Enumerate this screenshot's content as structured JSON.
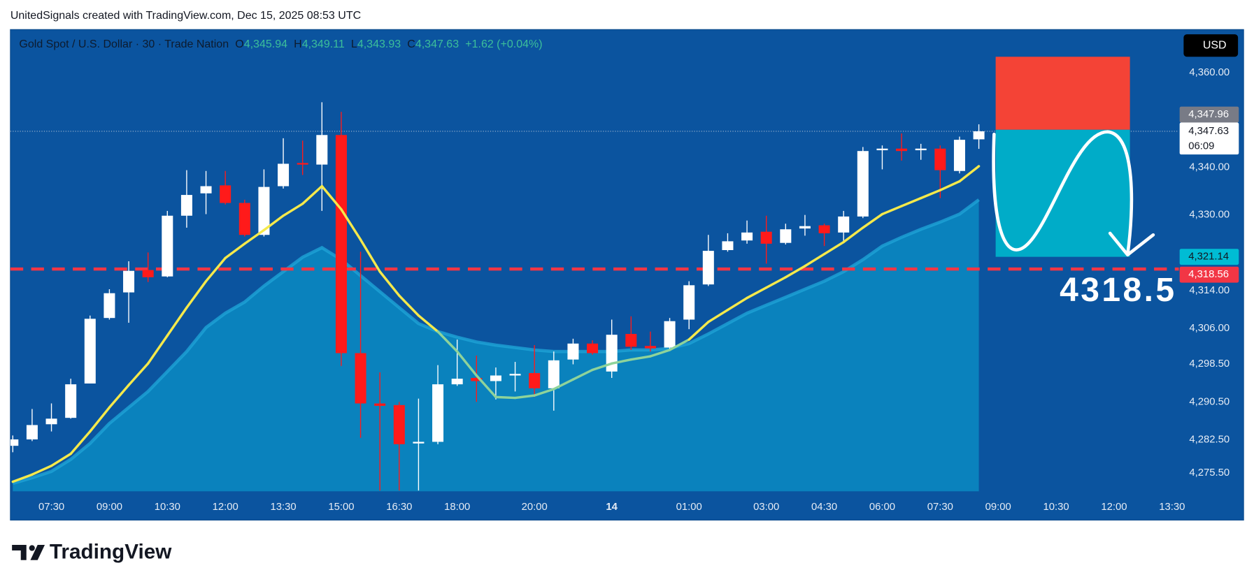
{
  "header": {
    "text": "UnitedSignals created with TradingView.com, Dec 15, 2025 08:53 UTC"
  },
  "chart_data": {
    "type": "candlestick",
    "symbol": "Gold Spot / U.S. Dollar · 30 · Trade Nation",
    "ohlc_legend": [
      {
        "key": "O",
        "text": "4,345.94"
      },
      {
        "key": "H",
        "text": "4,349.11"
      },
      {
        "key": "L",
        "text": "4,343.93"
      },
      {
        "key": "C",
        "text": "4,347.63"
      }
    ],
    "change": "+1.62 (+0.04%)",
    "currency": "USD",
    "open": [
      4281.25,
      4282.6,
      4285.8,
      4287.15,
      4294.4,
      4308.23,
      4313.63,
      4318.35,
      4317.0,
      4329.82,
      4334.54,
      4336.22,
      4332.51,
      4325.77,
      4336.05,
      4340.94,
      4340.61,
      4346.85,
      4300.81,
      4290.19,
      4289.85,
      4281.75,
      4282.09,
      4294.23,
      4295.58,
      4294.91,
      4296.09,
      4296.6,
      4293.39,
      4299.46,
      4302.83,
      4296.93,
      4304.86,
      4302.33,
      4301.99,
      4307.89,
      4315.31,
      4322.56,
      4324.59,
      4326.44,
      4324.08,
      4327.12,
      4327.79,
      4326.27,
      4329.65,
      4343.64,
      4343.98,
      4343.64,
      4343.98,
      4339.26,
      4345.94
    ],
    "high": [
      4283.44,
      4289.01,
      4290.19,
      4295.41,
      4308.74,
      4314.3,
      4320.2,
      4322.06,
      4330.83,
      4339.43,
      4339.26,
      4339.26,
      4333.19,
      4339.6,
      4346.17,
      4345.67,
      4353.76,
      4351.74,
      4322.23,
      4296.76,
      4290.52,
      4291.2,
      4298.28,
      4303.68,
      4300.3,
      4297.78,
      4298.96,
      4302.5,
      4301.15,
      4303.85,
      4303.51,
      4307.89,
      4308.57,
      4305.36,
      4308.23,
      4315.99,
      4325.77,
      4326.11,
      4328.8,
      4329.82,
      4328.13,
      4329.98,
      4328.13,
      4330.83,
      4344.32,
      4344.65,
      4347.18,
      4344.99,
      4344.65,
      4346.51,
      4349.11
    ],
    "low": [
      4279.9,
      4282.26,
      4284.28,
      4286.98,
      4294.4,
      4307.89,
      4307.22,
      4315.82,
      4316.83,
      4327.29,
      4330.15,
      4332.18,
      4325.43,
      4325.43,
      4335.55,
      4338.42,
      4330.83,
      4298.11,
      4282.93,
      4271.81,
      4271.81,
      4271.81,
      4281.59,
      4293.9,
      4290.52,
      4291.03,
      4292.72,
      4291.54,
      4288.67,
      4298.45,
      4300.47,
      4295.58,
      4301.48,
      4301.15,
      4301.65,
      4305.87,
      4314.98,
      4322.23,
      4323.91,
      4319.7,
      4323.74,
      4325.6,
      4323.41,
      4324.42,
      4329.31,
      4339.6,
      4341.45,
      4341.62,
      4333.53,
      4338.75,
      4343.93
    ],
    "close": [
      4282.6,
      4285.63,
      4286.98,
      4294.23,
      4308.06,
      4313.46,
      4318.18,
      4316.83,
      4329.82,
      4334.2,
      4336.05,
      4332.51,
      4325.77,
      4335.89,
      4340.78,
      4340.61,
      4346.85,
      4300.81,
      4290.19,
      4289.68,
      4281.59,
      4282.09,
      4294.23,
      4295.41,
      4294.91,
      4296.09,
      4296.43,
      4293.39,
      4299.29,
      4302.83,
      4300.81,
      4304.69,
      4302.16,
      4301.82,
      4307.56,
      4315.14,
      4322.4,
      4324.42,
      4326.27,
      4323.91,
      4326.95,
      4327.62,
      4326.11,
      4329.65,
      4343.47,
      4343.98,
      4343.47,
      4343.98,
      4339.43,
      4345.84,
      4347.63
    ],
    "up_color": "#ffffff",
    "down_color": "#ff1a1a",
    "series": [
      {
        "color": "#f5e94b",
        "color_below": "#8ed39a",
        "values": [
          4273.66,
          4275.18,
          4277.03,
          4279.56,
          4284.28,
          4289.34,
          4294.07,
          4298.62,
          4304.52,
          4310.42,
          4315.99,
          4320.88,
          4323.91,
          4326.78,
          4329.82,
          4332.34,
          4336.05,
          4331.16,
          4324.76,
          4318.01,
          4312.95,
          4308.74,
          4305.36,
          4301.15,
          4296.09,
          4291.54,
          4291.37,
          4291.87,
          4293.22,
          4295.25,
          4297.27,
          4298.62,
          4299.46,
          4300.14,
          4301.48,
          4303.68,
          4307.39,
          4309.92,
          4312.45,
          4314.64,
          4316.83,
          4319.19,
          4321.72,
          4324.25,
          4327.29,
          4330.15,
          4331.84,
          4333.53,
          4335.21,
          4337.07,
          4340.27
        ]
      },
      {
        "color": "#1ea2d6",
        "fill": "#0a87c0",
        "values": [
          4273.32,
          4274.5,
          4275.85,
          4278.38,
          4281.75,
          4285.97,
          4289.34,
          4292.72,
          4296.93,
          4301.15,
          4306.21,
          4309.24,
          4311.6,
          4314.98,
          4318.01,
          4321.05,
          4323.07,
          4320.54,
          4317.17,
          4313.79,
          4310.42,
          4307.05,
          4305.36,
          4304.18,
          4303.17,
          4302.5,
          4301.99,
          4301.48,
          4301.15,
          4301.15,
          4301.15,
          4301.15,
          4301.48,
          4301.48,
          4301.82,
          4302.83,
          4304.86,
          4307.05,
          4309.24,
          4310.93,
          4312.61,
          4314.3,
          4315.99,
          4318.01,
          4320.54,
          4323.41,
          4325.26,
          4326.95,
          4328.47,
          4330.15,
          4333.19
        ]
      }
    ],
    "ylim": [
      4271.64,
      4369.11
    ],
    "yticks": [
      {
        "value": 4360,
        "label": "4,360.00"
      },
      {
        "value": 4340,
        "label": "4,340.00"
      },
      {
        "value": 4330,
        "label": "4,330.00"
      },
      {
        "value": 4314,
        "label": "4,314.00"
      },
      {
        "value": 4306,
        "label": "4,306.00"
      },
      {
        "value": 4298.5,
        "label": "4,298.50"
      },
      {
        "value": 4290.5,
        "label": "4,290.50"
      },
      {
        "value": 4282.5,
        "label": "4,282.50"
      },
      {
        "value": 4275.5,
        "label": "4,275.50"
      }
    ],
    "xlim": [
      -0.124,
      60.35
    ],
    "xticks": [
      {
        "value": 2,
        "label": "07:30"
      },
      {
        "value": 5,
        "label": "09:00"
      },
      {
        "value": 8,
        "label": "10:30"
      },
      {
        "value": 11,
        "label": "12:00"
      },
      {
        "value": 14,
        "label": "13:30"
      },
      {
        "value": 17,
        "label": "15:00"
      },
      {
        "value": 20,
        "label": "16:30"
      },
      {
        "value": 23,
        "label": "18:00"
      },
      {
        "value": 27,
        "label": "20:00"
      },
      {
        "value": 31,
        "label": "14",
        "bold": true
      },
      {
        "value": 35,
        "label": "01:00"
      },
      {
        "value": 39,
        "label": "03:00"
      },
      {
        "value": 42,
        "label": "04:30"
      },
      {
        "value": 45,
        "label": "06:00"
      },
      {
        "value": 48,
        "label": "07:30"
      },
      {
        "value": 51,
        "label": "09:00"
      },
      {
        "value": 54,
        "label": "10:30"
      },
      {
        "value": 57,
        "label": "12:00"
      },
      {
        "value": 60,
        "label": "13:30"
      }
    ],
    "lines": [
      {
        "value": 4318.56,
        "color": "#f23645",
        "style": "dashed"
      },
      {
        "value": 4347.63,
        "color": "#a9bdd4",
        "style": "dotted"
      }
    ],
    "axis_labels": [
      {
        "value": 4347.96,
        "label": "4,347.96",
        "color": "#787b86",
        "text_color": "#ffffff"
      },
      {
        "value": 4347.63,
        "label": "4,347.63",
        "color": "#ffffff",
        "text_color": "#131722"
      },
      {
        "value": 4321.14,
        "label": "4,321.14",
        "color": "#00bcd4",
        "text_color": "#131722"
      },
      {
        "value": 4318.56,
        "label": "4,318.56",
        "color": "#f23645",
        "text_color": "#ffffff"
      }
    ],
    "countdown": "06:09",
    "position": {
      "entry": 4347.96,
      "stop": 4363.37,
      "target": 4321.14,
      "x": [
        50.87,
        57.82
      ],
      "stop_color": "#f44336",
      "target_color": "#00acc8"
    },
    "annotation": "4318.5"
  },
  "footer": {
    "brand": "TradingView"
  }
}
